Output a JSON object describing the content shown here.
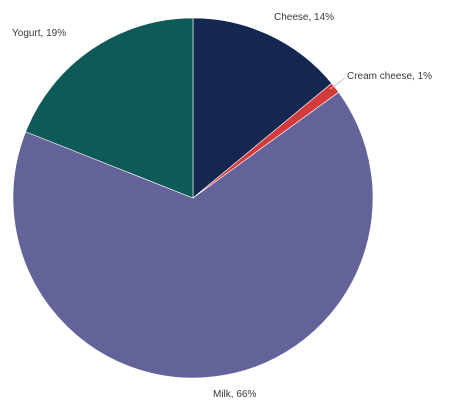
{
  "chart_data": {
    "type": "pie",
    "title": "",
    "start_angle_deg": 0,
    "direction": "clockwise",
    "slices": [
      {
        "label": "Cheese",
        "value": 14,
        "display": "Cheese, 14%",
        "color": "#14284f"
      },
      {
        "label": "Cream cheese",
        "value": 1,
        "display": "Cream cheese, 1%",
        "color": "#d33a3a"
      },
      {
        "label": "Milk",
        "value": 66,
        "display": "Milk, 66%",
        "color": "#63639a"
      },
      {
        "label": "Yogurt",
        "value": 19,
        "display": "Yogurt, 19%",
        "color": "#0e5a58"
      }
    ],
    "legend": "none"
  }
}
